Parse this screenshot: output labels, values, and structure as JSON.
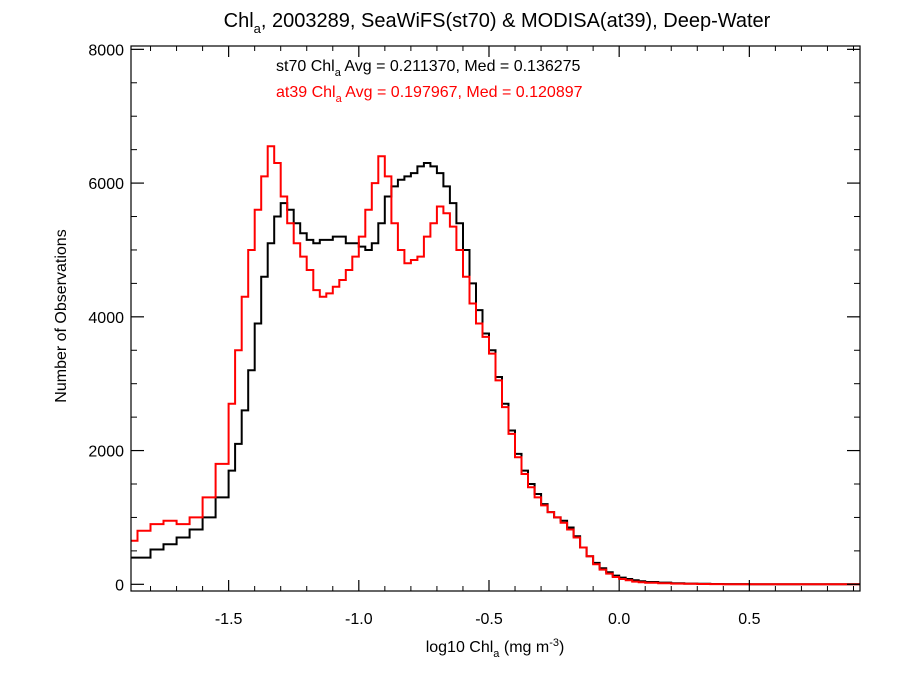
{
  "chart_data": {
    "type": "line",
    "style": "step histogram",
    "title": {
      "main": "Chl",
      "sub": "a",
      "rest": ", 2003289, SeaWiFS(st70) & MODISA(at39), Deep-Water"
    },
    "xlabel": {
      "main": "log10 Chl",
      "sub": "a",
      "rest": " (mg m",
      "sup": "-3",
      "end": ")"
    },
    "ylabel": "Number of Observations",
    "xlim": [
      -1.875,
      0.925
    ],
    "ylim": [
      -100,
      8050
    ],
    "x_ticks": [
      {
        "value": -1.5,
        "label": "-1.5"
      },
      {
        "value": -1.0,
        "label": "-1.0"
      },
      {
        "value": -0.5,
        "label": "-0.5"
      },
      {
        "value": 0.0,
        "label": "0.0"
      },
      {
        "value": 0.5,
        "label": "0.5"
      }
    ],
    "y_ticks": [
      {
        "value": 0,
        "label": "0"
      },
      {
        "value": 2000,
        "label": "2000"
      },
      {
        "value": 4000,
        "label": "4000"
      },
      {
        "value": 6000,
        "label": "6000"
      },
      {
        "value": 8000,
        "label": "8000"
      }
    ],
    "annotations": [
      {
        "prefix": "st70 Chl",
        "sub": "a",
        "rest": " Avg = 0.211370, Med = 0.136275",
        "color": "#000000"
      },
      {
        "prefix": "at39 Chl",
        "sub": "a",
        "rest": " Avg = 0.197967, Med = 0.120897",
        "color": "#ff0000"
      }
    ],
    "series": [
      {
        "color": "#000000",
        "x": [
          -1.875,
          -1.8,
          -1.75,
          -1.7,
          -1.65,
          -1.6,
          -1.55,
          -1.5,
          -1.475,
          -1.45,
          -1.425,
          -1.4,
          -1.375,
          -1.35,
          -1.325,
          -1.3,
          -1.275,
          -1.25,
          -1.225,
          -1.2,
          -1.175,
          -1.15,
          -1.1,
          -1.05,
          -1.0,
          -0.975,
          -0.95,
          -0.925,
          -0.9,
          -0.875,
          -0.85,
          -0.825,
          -0.8,
          -0.775,
          -0.75,
          -0.725,
          -0.7,
          -0.675,
          -0.65,
          -0.625,
          -0.6,
          -0.575,
          -0.55,
          -0.525,
          -0.5,
          -0.475,
          -0.45,
          -0.425,
          -0.4,
          -0.375,
          -0.35,
          -0.325,
          -0.3,
          -0.275,
          -0.25,
          -0.225,
          -0.2,
          -0.175,
          -0.15,
          -0.125,
          -0.1,
          -0.075,
          -0.05,
          -0.025,
          0.0,
          0.025,
          0.05,
          0.075,
          0.1,
          0.15,
          0.2,
          0.25,
          0.3,
          0.35,
          0.4,
          0.5,
          0.6,
          0.7,
          0.8,
          0.925
        ],
        "values": [
          400,
          520,
          600,
          700,
          820,
          1000,
          1300,
          1700,
          2100,
          2600,
          3200,
          3900,
          4600,
          5100,
          5500,
          5700,
          5600,
          5400,
          5250,
          5150,
          5100,
          5150,
          5200,
          5100,
          5050,
          5000,
          5100,
          5400,
          5800,
          5950,
          6050,
          6100,
          6150,
          6250,
          6300,
          6250,
          6150,
          5950,
          5700,
          5400,
          5000,
          4500,
          4100,
          3750,
          3500,
          3100,
          2700,
          2300,
          1950,
          1700,
          1500,
          1350,
          1200,
          1080,
          1000,
          950,
          850,
          720,
          550,
          420,
          320,
          240,
          180,
          130,
          100,
          80,
          60,
          45,
          35,
          25,
          15,
          10,
          8,
          5,
          3,
          2,
          1,
          0,
          0,
          0
        ]
      },
      {
        "color": "#ff0000",
        "x": [
          -1.875,
          -1.85,
          -1.8,
          -1.75,
          -1.7,
          -1.65,
          -1.6,
          -1.55,
          -1.5,
          -1.475,
          -1.45,
          -1.425,
          -1.4,
          -1.375,
          -1.35,
          -1.325,
          -1.3,
          -1.275,
          -1.25,
          -1.225,
          -1.2,
          -1.175,
          -1.15,
          -1.125,
          -1.1,
          -1.075,
          -1.05,
          -1.025,
          -1.0,
          -0.975,
          -0.95,
          -0.925,
          -0.9,
          -0.875,
          -0.85,
          -0.825,
          -0.8,
          -0.775,
          -0.75,
          -0.725,
          -0.7,
          -0.675,
          -0.65,
          -0.625,
          -0.6,
          -0.575,
          -0.55,
          -0.525,
          -0.5,
          -0.475,
          -0.45,
          -0.425,
          -0.4,
          -0.375,
          -0.35,
          -0.325,
          -0.3,
          -0.275,
          -0.25,
          -0.225,
          -0.2,
          -0.175,
          -0.15,
          -0.125,
          -0.1,
          -0.075,
          -0.05,
          -0.025,
          0.0,
          0.025,
          0.05,
          0.075,
          0.1,
          0.15,
          0.2,
          0.25,
          0.3,
          0.35,
          0.4,
          0.5,
          0.6,
          0.7,
          0.8,
          0.925
        ],
        "values": [
          650,
          800,
          900,
          950,
          900,
          1000,
          1300,
          1800,
          2700,
          3500,
          4300,
          5000,
          5600,
          6100,
          6550,
          6300,
          5800,
          5400,
          5100,
          4900,
          4700,
          4400,
          4300,
          4350,
          4450,
          4550,
          4700,
          4900,
          5200,
          5600,
          6000,
          6400,
          6100,
          5400,
          5000,
          4800,
          4850,
          4900,
          5200,
          5400,
          5650,
          5550,
          5350,
          5000,
          4600,
          4200,
          3900,
          3700,
          3450,
          3050,
          2650,
          2250,
          1900,
          1650,
          1450,
          1300,
          1180,
          1080,
          1000,
          920,
          820,
          700,
          550,
          420,
          300,
          220,
          160,
          110,
          80,
          60,
          40,
          30,
          22,
          15,
          10,
          7,
          5,
          3,
          2,
          1,
          0,
          0,
          0,
          0
        ]
      }
    ]
  }
}
